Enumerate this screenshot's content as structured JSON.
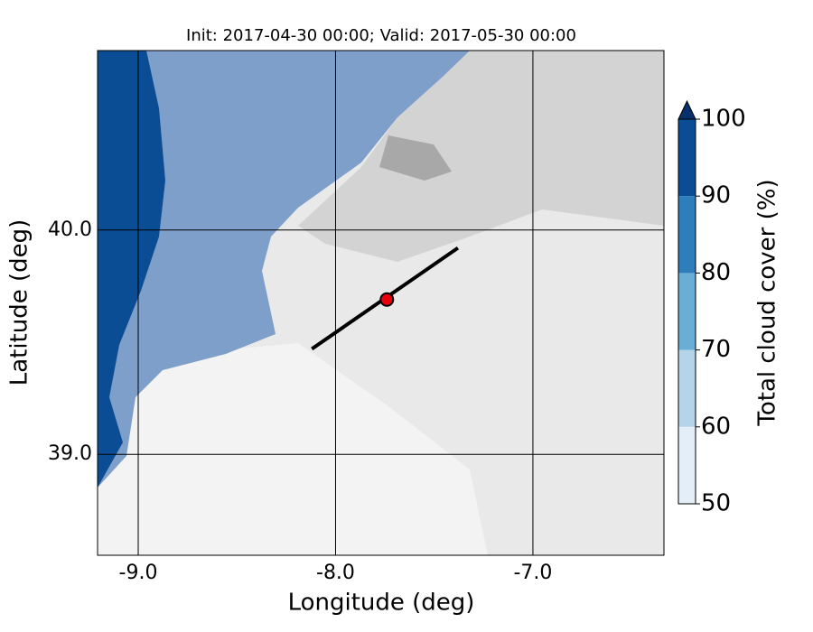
{
  "chart_data": {
    "type": "map",
    "title": "Init: 2017-04-30 00:00; Valid: 2017-05-30 00:00",
    "x_label": "Longitude (deg)",
    "y_label": "Latitude (deg)",
    "xlim": [
      -9.206,
      -6.336
    ],
    "ylim": [
      38.55,
      40.8
    ],
    "xticks": [
      {
        "value": -9,
        "label": "-9.0"
      },
      {
        "value": -8,
        "label": "-8.0"
      },
      {
        "value": -7,
        "label": "-7.0"
      }
    ],
    "yticks": [
      {
        "value": 39,
        "label": "39.0"
      },
      {
        "value": 40,
        "label": "40.0"
      }
    ],
    "grid": true,
    "transect": {
      "x": [
        -8.12,
        -7.38
      ],
      "y": [
        39.47,
        39.92
      ],
      "color": "#000000"
    },
    "point": {
      "x": -7.74,
      "y": 39.69,
      "color": "#e8000b"
    },
    "colorbar": {
      "label": "Total cloud cover (%)",
      "levels": [
        50,
        60,
        70,
        80,
        90,
        100
      ],
      "colors": [
        "#e3eef8",
        "#b5d4e9",
        "#6aaed6",
        "#2e7ebc",
        "#0b4d94"
      ],
      "extend_color": "#08306b"
    }
  }
}
